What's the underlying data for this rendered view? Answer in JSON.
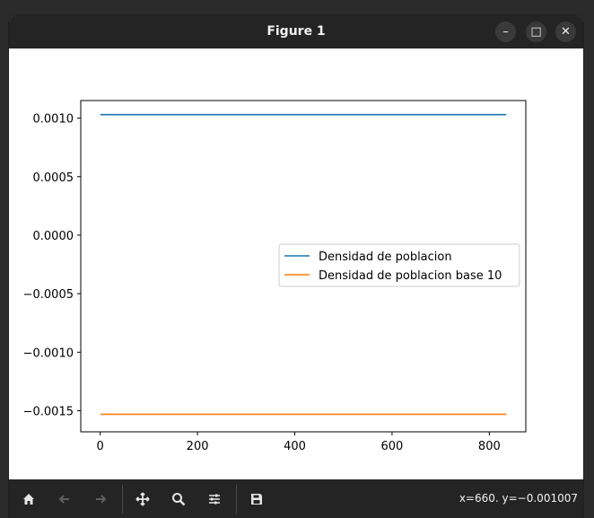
{
  "window": {
    "title": "Figure 1",
    "minimize_glyph": "–",
    "maximize_glyph": "□",
    "close_glyph": "✕"
  },
  "toolbar": {
    "buttons": [
      {
        "name": "home-icon",
        "enabled": true
      },
      {
        "name": "back-icon",
        "enabled": false
      },
      {
        "name": "forward-icon",
        "enabled": false
      },
      {
        "name": "pan-icon",
        "enabled": true
      },
      {
        "name": "zoom-icon",
        "enabled": true
      },
      {
        "name": "configure-subplots-icon",
        "enabled": true
      },
      {
        "name": "save-icon",
        "enabled": true
      }
    ],
    "coords": "x=660. y=−0.001007"
  },
  "chart_data": {
    "type": "line",
    "xlim": [
      -40,
      875
    ],
    "ylim": [
      -0.00168,
      0.00115
    ],
    "xticks": [
      0,
      200,
      400,
      600,
      800
    ],
    "xtick_labels": [
      "0",
      "200",
      "400",
      "600",
      "800"
    ],
    "yticks": [
      0.001,
      0.0005,
      0.0,
      -0.0005,
      -0.001,
      -0.0015
    ],
    "ytick_labels": [
      "0.0010",
      "0.0005",
      "0.0000",
      "−0.0005",
      "−0.0010",
      "−0.0015"
    ],
    "grid": false,
    "legend_position": "center-right",
    "series": [
      {
        "name": "Densidad de poblacion",
        "color": "#1f77b4",
        "x": [
          0,
          835
        ],
        "y": [
          0.00103,
          0.00103
        ]
      },
      {
        "name": "Densidad de poblacion base 10",
        "color": "#ff7f0e",
        "x": [
          0,
          835
        ],
        "y": [
          -0.00153,
          -0.00153
        ]
      }
    ]
  }
}
